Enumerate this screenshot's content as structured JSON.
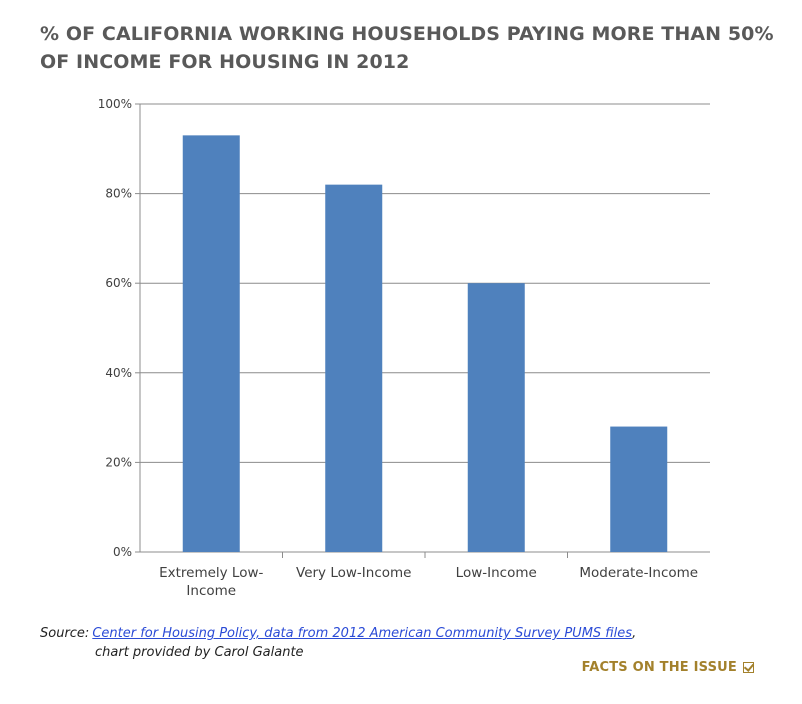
{
  "chart_data": {
    "type": "bar",
    "title": "% OF CALIFORNIA WORKING HOUSEHOLDS PAYING MORE THAN 50% OF INCOME FOR HOUSING IN 2012",
    "categories": [
      [
        "Extremely Low-",
        "Income"
      ],
      [
        "Very Low-Income"
      ],
      [
        "Low-Income"
      ],
      [
        "Moderate-Income"
      ]
    ],
    "values": [
      93,
      82,
      60,
      28
    ],
    "value_unit": "%",
    "ylim": [
      0,
      100
    ],
    "y_ticks": [
      0,
      20,
      40,
      60,
      80,
      100
    ],
    "y_tick_labels": [
      "0%",
      "20%",
      "40%",
      "60%",
      "80%",
      "100%"
    ],
    "xlabel": "",
    "ylabel": "",
    "grid": true,
    "bar_color": "#4f81bd",
    "grid_color": "#8c8c8c"
  },
  "source": {
    "label": "Source:",
    "link_text": "Center for Housing Policy, data from 2012 American Community Survey PUMS files",
    "trailing": ",",
    "second_line": "chart provided by Carol Galante"
  },
  "footer": {
    "facts_label": "FACTS ON THE ISSUE",
    "icon": "checkbox-check-icon"
  }
}
